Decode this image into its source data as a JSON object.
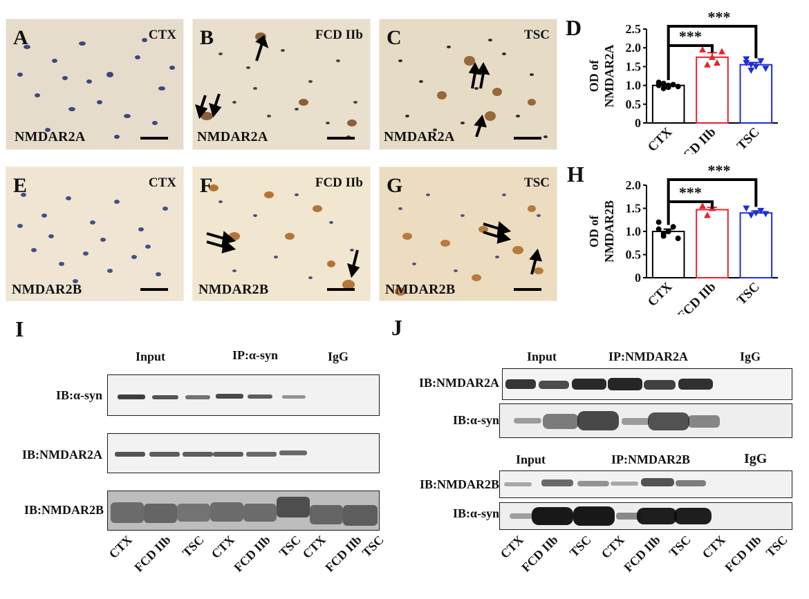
{
  "panel_letters": {
    "A": "A",
    "B": "B",
    "C": "C",
    "D": "D",
    "E": "E",
    "F": "F",
    "G": "G",
    "H": "H",
    "I": "I",
    "J": "J"
  },
  "micrographs": {
    "A": {
      "label": "NMDAR2A",
      "condition": "CTX"
    },
    "B": {
      "label": "NMDAR2A",
      "condition": "FCD IIb"
    },
    "C": {
      "label": "NMDAR2A",
      "condition": "TSC"
    },
    "E": {
      "label": "NMDAR2B",
      "condition": "CTX"
    },
    "F": {
      "label": "NMDAR2B",
      "condition": "FCD IIb"
    },
    "G": {
      "label": "NMDAR2B",
      "condition": "TSC"
    }
  },
  "chart_data": [
    {
      "type": "bar",
      "panel": "D",
      "ylabel": "OD of NMDAR2A",
      "ylabel_line1": "OD of",
      "ylabel_line2": "NMDAR2A",
      "categories": [
        "CTX",
        "FCD IIb",
        "TSC"
      ],
      "values": [
        1.0,
        1.75,
        1.55
      ],
      "errors": [
        0.03,
        0.12,
        0.06
      ],
      "colors": [
        "#000000",
        "#e8202a",
        "#1f2fd4"
      ],
      "points": [
        [
          1.0,
          1.05,
          0.95,
          1.02,
          0.97,
          1.08,
          0.92,
          1.0
        ],
        [
          1.95,
          1.55,
          1.75,
          1.6,
          1.9
        ],
        [
          1.7,
          1.4,
          1.5,
          1.65,
          1.45,
          1.6,
          1.55
        ]
      ],
      "ylim": [
        0,
        2.5
      ],
      "yticks": [
        "0",
        "0.5",
        "1.0",
        "1.5",
        "2.0",
        "2.5"
      ],
      "significance": [
        "***",
        "***"
      ],
      "grid": false
    },
    {
      "type": "bar",
      "panel": "H",
      "ylabel": "OD of NMDAR2B",
      "ylabel_line1": "OD of",
      "ylabel_line2": "NMDAR2B",
      "categories": [
        "CTX",
        "FCD IIb",
        "TSC"
      ],
      "values": [
        1.0,
        1.47,
        1.4
      ],
      "errors": [
        0.05,
        0.05,
        0.04
      ],
      "colors": [
        "#000000",
        "#e8202a",
        "#1f2fd4"
      ],
      "points": [
        [
          1.2,
          0.9,
          1.0,
          1.1,
          0.85,
          1.05,
          0.95,
          1.0
        ],
        [
          1.55,
          1.35,
          1.5
        ],
        [
          1.5,
          1.35,
          1.4,
          1.45,
          1.38
        ]
      ],
      "ylim": [
        0,
        2.0
      ],
      "yticks": [
        "0",
        "0.5",
        "1.0",
        "1.5",
        "2.0"
      ],
      "significance": [
        "***",
        "***"
      ],
      "grid": false
    }
  ],
  "blot_I": {
    "headers": [
      "Input",
      "IP:α-syn",
      "IgG"
    ],
    "rows": [
      "IB:α-syn",
      "IB:NMDAR2A",
      "IB:NMDAR2B"
    ],
    "lanes": [
      "CTX",
      "FCD IIb",
      "TSC",
      "CTX",
      "FCD IIb",
      "TSC",
      "CTX",
      "FCD IIb",
      "TSC"
    ]
  },
  "blot_J": {
    "headers_top": [
      "Input",
      "IP:NMDAR2A",
      "IgG"
    ],
    "rows_top": [
      "IB:NMDAR2A",
      "IB:α-syn"
    ],
    "headers_bottom": [
      "Input",
      "IP:NMDAR2B",
      "IgG"
    ],
    "rows_bottom": [
      "IB:NMDAR2B",
      "IB:α-syn"
    ],
    "lanes": [
      "CTX",
      "FCD IIb",
      "TSC",
      "CTX",
      "FCD IIb",
      "TSC",
      "CTX",
      "FCD IIb",
      "TSC"
    ]
  }
}
